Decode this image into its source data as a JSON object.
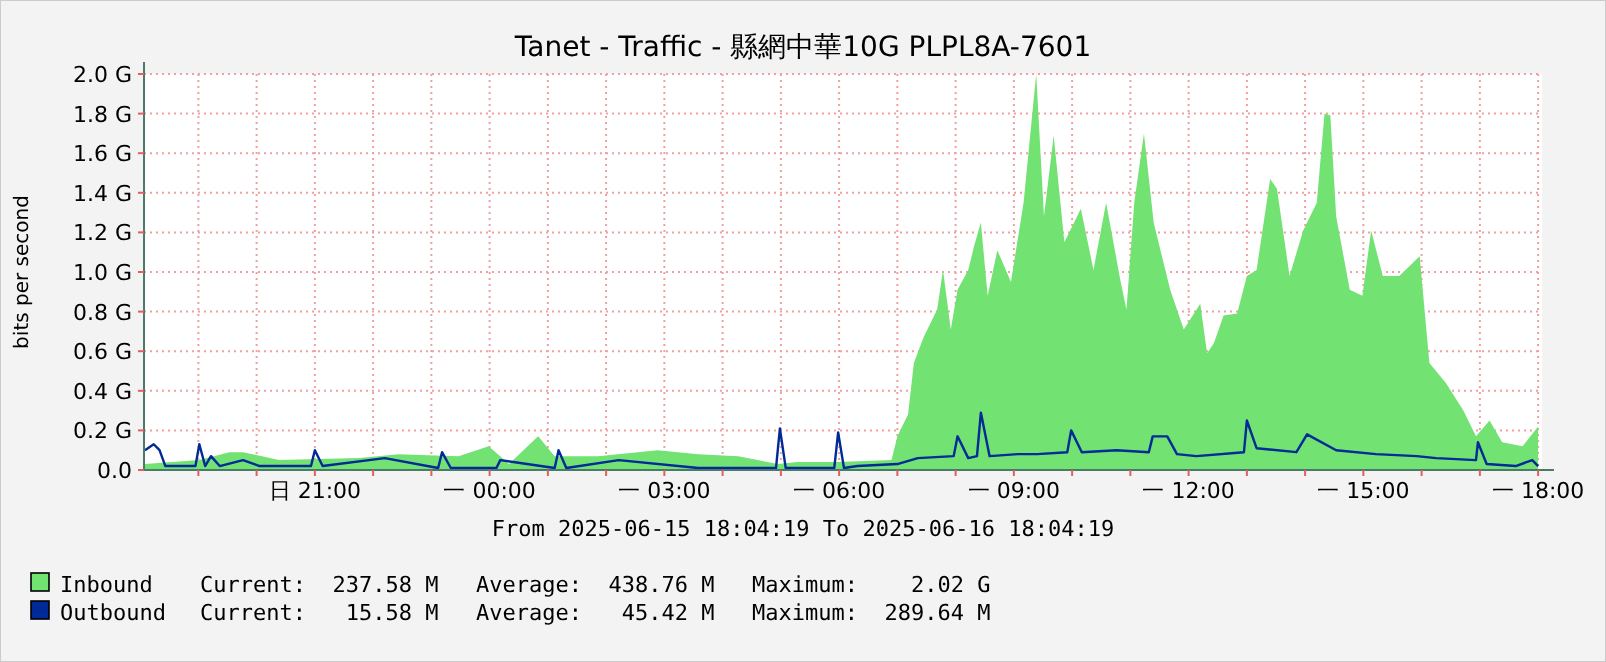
{
  "chart_data": {
    "type": "area",
    "title": "Tanet - Traffic - 縣網中華10G PLPL8A-7601",
    "xlabel": "From 2025-06-15 18:04:19 To 2025-06-16 18:04:19",
    "ylabel": "bits per second",
    "xlim": [
      "2025-06-15T18:04",
      "2025-06-16T18:04"
    ],
    "ylim": [
      0,
      2.0
    ],
    "xticks": [
      {
        "value": "2025-06-15T19:00",
        "label": null
      },
      {
        "value": "2025-06-15T20:00",
        "label": null
      },
      {
        "value": "2025-06-15T21:00",
        "label": "日 21:00"
      },
      {
        "value": "2025-06-15T22:00",
        "label": null
      },
      {
        "value": "2025-06-15T23:00",
        "label": null
      },
      {
        "value": "2025-06-16T00:00",
        "label": "一 00:00"
      },
      {
        "value": "2025-06-16T01:00",
        "label": null
      },
      {
        "value": "2025-06-16T02:00",
        "label": null
      },
      {
        "value": "2025-06-16T03:00",
        "label": "一 03:00"
      },
      {
        "value": "2025-06-16T04:00",
        "label": null
      },
      {
        "value": "2025-06-16T05:00",
        "label": null
      },
      {
        "value": "2025-06-16T06:00",
        "label": "一 06:00"
      },
      {
        "value": "2025-06-16T07:00",
        "label": null
      },
      {
        "value": "2025-06-16T08:00",
        "label": null
      },
      {
        "value": "2025-06-16T09:00",
        "label": "一 09:00"
      },
      {
        "value": "2025-06-16T10:00",
        "label": null
      },
      {
        "value": "2025-06-16T11:00",
        "label": null
      },
      {
        "value": "2025-06-16T12:00",
        "label": "一 12:00"
      },
      {
        "value": "2025-06-16T13:00",
        "label": null
      },
      {
        "value": "2025-06-16T14:00",
        "label": null
      },
      {
        "value": "2025-06-16T15:00",
        "label": "一 15:00"
      },
      {
        "value": "2025-06-16T16:00",
        "label": null
      },
      {
        "value": "2025-06-16T17:00",
        "label": null
      },
      {
        "value": "2025-06-16T18:00",
        "label": "一 18:00"
      }
    ],
    "yticks": [
      {
        "value": 0,
        "label": "0.0"
      },
      {
        "value": 0.2,
        "label": "0.2 G"
      },
      {
        "value": 0.4,
        "label": "0.4 G"
      },
      {
        "value": 0.6,
        "label": "0.6 G"
      },
      {
        "value": 0.8,
        "label": "0.8 G"
      },
      {
        "value": 1.0,
        "label": "1.0 G"
      },
      {
        "value": 1.2,
        "label": "1.2 G"
      },
      {
        "value": 1.4,
        "label": "1.4 G"
      },
      {
        "value": 1.6,
        "label": "1.6 G"
      },
      {
        "value": 1.8,
        "label": "1.8 G"
      },
      {
        "value": 2.0,
        "label": "2.0 G"
      }
    ],
    "grid": true,
    "legend": "bottom left",
    "series": [
      {
        "name": "Inbound",
        "type": "area",
        "color": "#72e272",
        "x": [
          "2025-06-15T18:05",
          "2025-06-15T19:01",
          "2025-06-15T19:32",
          "2025-06-15T19:46",
          "2025-06-15T20:23",
          "2025-06-15T21:46",
          "2025-06-15T22:26",
          "2025-06-15T23:28",
          "2025-06-15T23:59",
          "2025-06-16T00:20",
          "2025-06-16T00:50",
          "2025-06-16T01:07",
          "2025-06-16T01:52",
          "2025-06-16T02:53",
          "2025-06-16T03:35",
          "2025-06-16T04:16",
          "2025-06-16T04:57",
          "2025-06-16T05:17",
          "2025-06-16T05:59",
          "2025-06-16T06:54",
          "2025-06-16T07:00",
          "2025-06-16T07:11",
          "2025-06-16T07:17",
          "2025-06-16T07:27",
          "2025-06-16T07:41",
          "2025-06-16T07:47",
          "2025-06-16T07:55",
          "2025-06-16T08:02",
          "2025-06-16T08:13",
          "2025-06-16T08:19",
          "2025-06-16T08:26",
          "2025-06-16T08:33",
          "2025-06-16T08:43",
          "2025-06-16T08:57",
          "2025-06-16T09:10",
          "2025-06-16T09:23",
          "2025-06-16T09:31",
          "2025-06-16T09:41",
          "2025-06-16T09:52",
          "2025-06-16T10:09",
          "2025-06-16T10:22",
          "2025-06-16T10:35",
          "2025-06-16T10:50",
          "2025-06-16T10:56",
          "2025-06-16T11:04",
          "2025-06-16T11:14",
          "2025-06-16T11:24",
          "2025-06-16T11:41",
          "2025-06-16T11:55",
          "2025-06-16T12:12",
          "2025-06-16T12:19",
          "2025-06-16T12:26",
          "2025-06-16T12:36",
          "2025-06-16T12:50",
          "2025-06-16T13:00",
          "2025-06-16T13:10",
          "2025-06-16T13:24",
          "2025-06-16T13:31",
          "2025-06-16T13:44",
          "2025-06-16T13:58",
          "2025-06-16T14:12",
          "2025-06-16T14:20",
          "2025-06-16T14:26",
          "2025-06-16T14:32",
          "2025-06-16T14:46",
          "2025-06-16T14:59",
          "2025-06-16T15:08",
          "2025-06-16T15:20",
          "2025-06-16T15:37",
          "2025-06-16T15:58",
          "2025-06-16T16:08",
          "2025-06-16T16:25",
          "2025-06-16T16:43",
          "2025-06-16T16:56",
          "2025-06-16T17:10",
          "2025-06-16T17:23",
          "2025-06-16T17:44",
          "2025-06-16T18:00"
        ],
        "values": [
          0.03,
          0.05,
          0.09,
          0.09,
          0.05,
          0.06,
          0.08,
          0.07,
          0.12,
          0.03,
          0.17,
          0.07,
          0.07,
          0.1,
          0.08,
          0.07,
          0.03,
          0.04,
          0.04,
          0.05,
          0.17,
          0.28,
          0.54,
          0.67,
          0.81,
          1.01,
          0.71,
          0.91,
          1.01,
          1.13,
          1.25,
          0.88,
          1.11,
          0.95,
          1.35,
          2.0,
          1.28,
          1.69,
          1.15,
          1.32,
          1.01,
          1.35,
          0.95,
          0.81,
          1.35,
          1.7,
          1.25,
          0.91,
          0.71,
          0.84,
          0.59,
          0.64,
          0.78,
          0.79,
          0.98,
          1.01,
          1.47,
          1.42,
          0.98,
          1.21,
          1.35,
          1.8,
          1.79,
          1.28,
          0.91,
          0.88,
          1.21,
          0.98,
          0.98,
          1.08,
          0.54,
          0.44,
          0.3,
          0.17,
          0.25,
          0.14,
          0.12,
          0.22
        ]
      },
      {
        "name": "Outbound",
        "type": "line",
        "color": "#002a97",
        "x": [
          "2025-06-15T18:05",
          "2025-06-15T18:14",
          "2025-06-15T18:20",
          "2025-06-15T18:26",
          "2025-06-15T18:57",
          "2025-06-15T19:01",
          "2025-06-15T19:07",
          "2025-06-15T19:13",
          "2025-06-15T19:22",
          "2025-06-15T19:46",
          "2025-06-15T20:03",
          "2025-06-15T20:56",
          "2025-06-15T21:00",
          "2025-06-15T21:08",
          "2025-06-15T22:12",
          "2025-06-15T23:07",
          "2025-06-15T23:11",
          "2025-06-15T23:20",
          "2025-06-16T00:07",
          "2025-06-16T00:11",
          "2025-06-16T01:07",
          "2025-06-16T01:11",
          "2025-06-16T01:19",
          "2025-06-16T02:13",
          "2025-06-16T03:35",
          "2025-06-16T04:55",
          "2025-06-16T04:59",
          "2025-06-16T05:05",
          "2025-06-16T05:55",
          "2025-06-16T05:59",
          "2025-06-16T06:05",
          "2025-06-16T06:19",
          "2025-06-16T07:00",
          "2025-06-16T07:21",
          "2025-06-16T07:58",
          "2025-06-16T08:02",
          "2025-06-16T08:13",
          "2025-06-16T08:22",
          "2025-06-16T08:26",
          "2025-06-16T08:35",
          "2025-06-16T09:04",
          "2025-06-16T09:24",
          "2025-06-16T09:55",
          "2025-06-16T09:59",
          "2025-06-16T10:10",
          "2025-06-16T10:46",
          "2025-06-16T11:19",
          "2025-06-16T11:23",
          "2025-06-16T11:38",
          "2025-06-16T11:48",
          "2025-06-16T12:08",
          "2025-06-16T12:57",
          "2025-06-16T13:00",
          "2025-06-16T13:10",
          "2025-06-16T13:51",
          "2025-06-16T14:02",
          "2025-06-16T14:32",
          "2025-06-16T15:13",
          "2025-06-16T15:55",
          "2025-06-16T16:15",
          "2025-06-16T16:56",
          "2025-06-16T16:58",
          "2025-06-16T17:07",
          "2025-06-16T17:37",
          "2025-06-16T17:54",
          "2025-06-16T18:00"
        ],
        "values": [
          0.1,
          0.13,
          0.1,
          0.02,
          0.02,
          0.13,
          0.02,
          0.07,
          0.02,
          0.05,
          0.02,
          0.02,
          0.1,
          0.02,
          0.06,
          0.01,
          0.09,
          0.01,
          0.01,
          0.05,
          0.01,
          0.1,
          0.01,
          0.05,
          0.01,
          0.01,
          0.21,
          0.01,
          0.01,
          0.19,
          0.01,
          0.02,
          0.03,
          0.06,
          0.07,
          0.17,
          0.06,
          0.07,
          0.29,
          0.07,
          0.08,
          0.08,
          0.09,
          0.2,
          0.09,
          0.1,
          0.09,
          0.17,
          0.17,
          0.08,
          0.07,
          0.09,
          0.25,
          0.11,
          0.09,
          0.18,
          0.1,
          0.08,
          0.07,
          0.06,
          0.05,
          0.14,
          0.03,
          0.02,
          0.05,
          0.02
        ]
      }
    ],
    "annotations": [
      "Current:  237.58 M",
      "Average:  438.76 M",
      "Maximum:    2.02 G",
      "Current:   15.58 M",
      "Average:   45.42 M",
      "Maximum:  289.64 M"
    ]
  }
}
